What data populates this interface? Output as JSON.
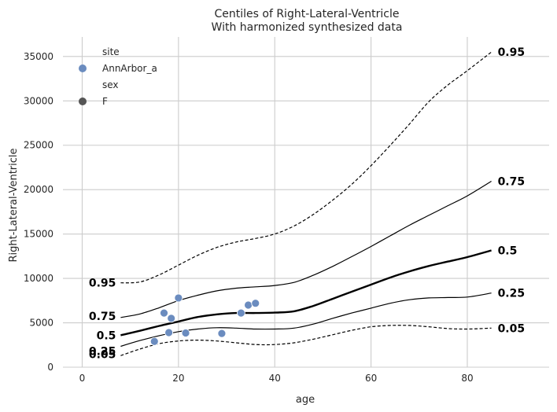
{
  "chart_data": {
    "type": "line",
    "title": "Centiles of Right-Lateral-Ventricle",
    "subtitle": "With harmonized synthesized data",
    "xlabel": "age",
    "ylabel": "Right-Lateral-Ventricle",
    "xlim": [
      -4,
      97
    ],
    "ylim": [
      0,
      37200
    ],
    "x_ticks": [
      0,
      20,
      40,
      60,
      80
    ],
    "y_ticks": [
      0,
      5000,
      10000,
      15000,
      20000,
      25000,
      30000,
      35000
    ],
    "grid": true,
    "legend": {
      "placement": "top-left",
      "entries": [
        {
          "kind": "header",
          "label": "site"
        },
        {
          "kind": "marker",
          "label": "AnnArbor_a",
          "color": "#6b8cbf"
        },
        {
          "kind": "header",
          "label": "sex"
        },
        {
          "kind": "marker",
          "label": "F",
          "color": "#555555"
        }
      ]
    },
    "series": [
      {
        "label": "0.05",
        "style": "dashed",
        "width": 1.2,
        "x": [
          8,
          12,
          16,
          20,
          24,
          28,
          32,
          36,
          40,
          44,
          48,
          52,
          56,
          60,
          64,
          68,
          72,
          76,
          80,
          85
        ],
        "y": [
          1300,
          2050,
          2650,
          2950,
          3050,
          2950,
          2750,
          2550,
          2550,
          2750,
          3150,
          3650,
          4150,
          4550,
          4700,
          4700,
          4550,
          4350,
          4300,
          4400
        ]
      },
      {
        "label": "0.25",
        "style": "solid",
        "width": 1.2,
        "x": [
          8,
          12,
          16,
          20,
          24,
          28,
          32,
          36,
          40,
          44,
          48,
          52,
          56,
          60,
          64,
          68,
          72,
          76,
          80,
          85
        ],
        "y": [
          2350,
          3000,
          3550,
          4000,
          4300,
          4450,
          4400,
          4300,
          4300,
          4400,
          4850,
          5500,
          6100,
          6650,
          7200,
          7600,
          7800,
          7850,
          7900,
          8350
        ]
      },
      {
        "label": "0.5",
        "style": "solid",
        "width": 2.4,
        "x": [
          8,
          12,
          16,
          20,
          24,
          28,
          32,
          36,
          40,
          44,
          48,
          52,
          56,
          60,
          64,
          68,
          72,
          76,
          80,
          85
        ],
        "y": [
          3600,
          4100,
          4650,
          5150,
          5650,
          5950,
          6100,
          6100,
          6150,
          6300,
          6900,
          7700,
          8500,
          9300,
          10100,
          10800,
          11400,
          11900,
          12400,
          13150
        ]
      },
      {
        "label": "0.75",
        "style": "solid",
        "width": 1.2,
        "x": [
          8,
          12,
          16,
          20,
          24,
          28,
          32,
          36,
          40,
          44,
          48,
          52,
          56,
          60,
          64,
          68,
          72,
          76,
          80,
          85
        ],
        "y": [
          5600,
          6000,
          6700,
          7500,
          8100,
          8600,
          8900,
          9050,
          9200,
          9550,
          10350,
          11350,
          12450,
          13600,
          14800,
          16000,
          17100,
          18200,
          19300,
          20950
        ]
      },
      {
        "label": "0.95",
        "style": "dashed",
        "width": 1.2,
        "x": [
          8,
          12,
          16,
          20,
          24,
          28,
          32,
          36,
          40,
          44,
          48,
          52,
          56,
          60,
          64,
          68,
          72,
          76,
          80,
          85
        ],
        "y": [
          9500,
          9600,
          10400,
          11500,
          12600,
          13500,
          14100,
          14500,
          15000,
          15900,
          17200,
          18800,
          20600,
          22700,
          25000,
          27400,
          29900,
          31800,
          33400,
          35500
        ]
      }
    ],
    "points": [
      {
        "x": 15,
        "y": 2900
      },
      {
        "x": 17,
        "y": 6100
      },
      {
        "x": 18,
        "y": 3900
      },
      {
        "x": 18.5,
        "y": 5500
      },
      {
        "x": 20,
        "y": 7800
      },
      {
        "x": 21.5,
        "y": 3850
      },
      {
        "x": 29,
        "y": 3800
      },
      {
        "x": 33,
        "y": 6100
      },
      {
        "x": 34.5,
        "y": 7000
      },
      {
        "x": 36,
        "y": 7200
      }
    ],
    "point_color": "#6b8cbf"
  }
}
